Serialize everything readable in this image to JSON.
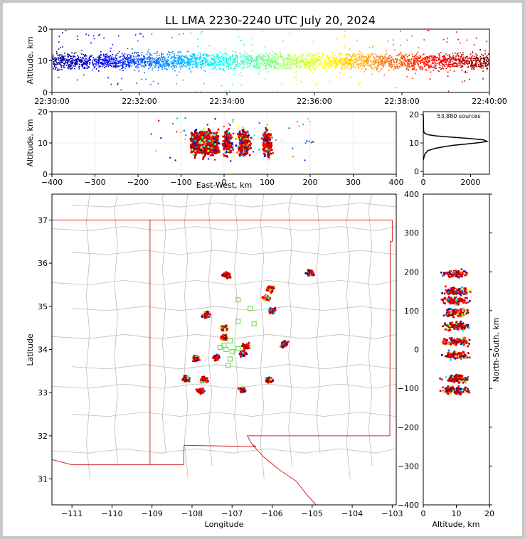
{
  "title": "LL LMA 2230-2240 UTC July 20, 2024",
  "colors": {
    "state_border": "#d62728",
    "county_border": "#bdbdbd",
    "frame": "#000000",
    "background": "#c8c8c8"
  },
  "chart_data": [
    {
      "id": "altitude-vs-time",
      "type": "scatter",
      "ylabel": "Altitude, km",
      "ylim": [
        0,
        20
      ],
      "xlim": [
        "22:30:00",
        "22:40:00"
      ],
      "yticks": [
        "0",
        "10",
        "20"
      ],
      "xticks": [
        "22:30:00",
        "22:32:00",
        "22:34:00",
        "22:36:00",
        "22:38:00",
        "22:40:00"
      ],
      "color_scale": "jet (time)",
      "density_profile": {
        "center_km": 10,
        "core_half_width_km": 2.2,
        "outlier_span_km": [
          0,
          20
        ]
      }
    },
    {
      "id": "altitude-vs-east-west",
      "type": "scatter",
      "xlabel": "East-West, km",
      "ylabel": "Altitude, km",
      "xlim": [
        -400,
        400
      ],
      "ylim": [
        0,
        20
      ],
      "xticks": [
        "−400",
        "−300",
        "−200",
        "−100",
        "0",
        "100",
        "200",
        "300",
        "400"
      ],
      "yticks": [
        "0",
        "10",
        "20"
      ],
      "clusters_x_km": [
        -67,
        -52,
        -40,
        -22,
        8,
        42,
        50,
        100
      ]
    },
    {
      "id": "source-histogram",
      "type": "line",
      "annotation": "53,880 sources",
      "xlim": [
        0,
        2800
      ],
      "ylim": [
        -1,
        21
      ],
      "xticks": [
        "0",
        "2000"
      ],
      "yticks": [
        "0",
        "10",
        "20"
      ],
      "x": [
        0,
        60,
        200,
        500,
        900,
        1300,
        1800,
        2350,
        2700,
        2550,
        1900,
        1100,
        500,
        200,
        80,
        30,
        15,
        0
      ],
      "y": [
        4,
        6,
        7.3,
        8.1,
        8.7,
        9.2,
        9.6,
        10.1,
        10.5,
        11.1,
        11.6,
        12.1,
        12.5,
        12.9,
        13.3,
        13.7,
        14.4,
        20
      ]
    },
    {
      "id": "plan-view-map",
      "type": "scatter",
      "xlabel": "Longitude",
      "ylabel": "Latitude",
      "xlim": [
        -111.5,
        -102.9
      ],
      "ylim": [
        30.4,
        37.6
      ],
      "xticks": [
        "−111",
        "−110",
        "−109",
        "−108",
        "−107",
        "−106",
        "−105",
        "−104",
        "−103"
      ],
      "yticks": [
        "31",
        "32",
        "33",
        "34",
        "35",
        "36",
        "37"
      ],
      "storm_cells": [
        {
          "lon": -107.15,
          "lat": 35.73
        },
        {
          "lon": -106.05,
          "lat": 35.4
        },
        {
          "lon": -106.15,
          "lat": 35.2
        },
        {
          "lon": -106.0,
          "lat": 34.9
        },
        {
          "lon": -107.65,
          "lat": 34.8
        },
        {
          "lon": -107.2,
          "lat": 34.5
        },
        {
          "lon": -107.2,
          "lat": 34.28
        },
        {
          "lon": -106.65,
          "lat": 34.08
        },
        {
          "lon": -107.9,
          "lat": 33.8
        },
        {
          "lon": -107.4,
          "lat": 33.82
        },
        {
          "lon": -106.72,
          "lat": 33.9
        },
        {
          "lon": -107.7,
          "lat": 33.3
        },
        {
          "lon": -107.78,
          "lat": 33.05
        },
        {
          "lon": -106.75,
          "lat": 33.05
        },
        {
          "lon": -105.7,
          "lat": 34.12
        },
        {
          "lon": -105.05,
          "lat": 35.78
        },
        {
          "lon": -106.08,
          "lat": 33.3
        },
        {
          "lon": -108.15,
          "lat": 33.33
        }
      ],
      "station_markers": [
        {
          "lon": -106.85,
          "lat": 35.15
        },
        {
          "lon": -106.55,
          "lat": 34.95
        },
        {
          "lon": -106.85,
          "lat": 34.65
        },
        {
          "lon": -107.2,
          "lat": 34.1
        },
        {
          "lon": -107.05,
          "lat": 34.2
        },
        {
          "lon": -107.3,
          "lat": 34.05
        },
        {
          "lon": -107.15,
          "lat": 34.0
        },
        {
          "lon": -107.0,
          "lat": 33.95
        },
        {
          "lon": -106.85,
          "lat": 34.02
        },
        {
          "lon": -107.05,
          "lat": 33.78
        },
        {
          "lon": -107.1,
          "lat": 33.63
        },
        {
          "lon": -106.45,
          "lat": 34.6
        }
      ]
    },
    {
      "id": "north-south-vs-altitude",
      "type": "scatter",
      "xlabel": "Altitude, km",
      "ylabel": "North-South, km",
      "xlim": [
        0,
        20
      ],
      "ylim": [
        -400,
        400
      ],
      "xticks": [
        "0",
        "10",
        "20"
      ],
      "yticks": [
        "−400",
        "−300",
        "−200",
        "−100",
        "0",
        "100",
        "200",
        "300",
        "400"
      ],
      "clusters_y_km": [
        195,
        150,
        125,
        95,
        60,
        20,
        -15,
        -75,
        -105
      ]
    }
  ]
}
